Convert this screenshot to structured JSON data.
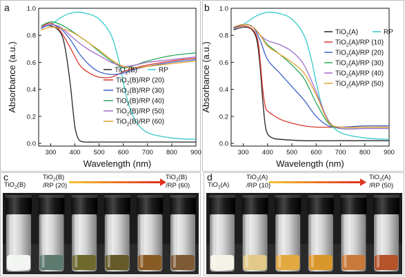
{
  "chart_data": [
    {
      "panel": "a",
      "type": "line",
      "xlabel": "Wavelength (nm)",
      "ylabel": "Absorbance (a.u.)",
      "xlim": [
        250,
        900
      ],
      "ylim": [
        -0.02,
        1.0
      ],
      "xticks": [
        300,
        400,
        500,
        600,
        700,
        800,
        900
      ],
      "yticks": [
        0.0,
        0.2,
        0.4,
        0.6,
        0.8,
        1.0
      ],
      "legend_position": "bottom-right",
      "series": [
        {
          "name": "TiO2(B)",
          "color": "#222222",
          "x": [
            260,
            300,
            340,
            360,
            380,
            390,
            400,
            410,
            420,
            440,
            480,
            550,
            700,
            900
          ],
          "y": [
            0.86,
            0.87,
            0.82,
            0.7,
            0.45,
            0.28,
            0.12,
            0.05,
            0.02,
            0.01,
            0.01,
            0.01,
            0.01,
            0.01
          ]
        },
        {
          "name": "RP",
          "color": "#35c9c9",
          "x": [
            260,
            300,
            350,
            400,
            450,
            500,
            550,
            580,
            600,
            620,
            650,
            700,
            800,
            900
          ],
          "y": [
            0.86,
            0.88,
            0.94,
            0.97,
            0.96,
            0.92,
            0.8,
            0.62,
            0.45,
            0.3,
            0.17,
            0.08,
            0.04,
            0.03
          ]
        },
        {
          "name": "TiO2(B)/RP (20)",
          "color": "#d9362b",
          "x": [
            260,
            300,
            340,
            380,
            420,
            460,
            500,
            550,
            600,
            650,
            700,
            800,
            900
          ],
          "y": [
            0.86,
            0.89,
            0.83,
            0.71,
            0.58,
            0.52,
            0.49,
            0.49,
            0.53,
            0.56,
            0.58,
            0.61,
            0.63
          ]
        },
        {
          "name": "TiO2(B)/RP (30)",
          "color": "#3a5fc8",
          "x": [
            260,
            300,
            340,
            380,
            420,
            460,
            500,
            550,
            600,
            650,
            700,
            800,
            900
          ],
          "y": [
            0.85,
            0.88,
            0.85,
            0.77,
            0.66,
            0.58,
            0.53,
            0.51,
            0.52,
            0.55,
            0.57,
            0.6,
            0.62
          ]
        },
        {
          "name": "TiO2(B)/RP (40)",
          "color": "#28a85a",
          "x": [
            260,
            300,
            340,
            380,
            420,
            460,
            500,
            550,
            600,
            650,
            700,
            800,
            900
          ],
          "y": [
            0.87,
            0.9,
            0.88,
            0.84,
            0.79,
            0.74,
            0.68,
            0.61,
            0.56,
            0.58,
            0.61,
            0.65,
            0.67
          ]
        },
        {
          "name": "TiO2(B)/RP (50)",
          "color": "#a06cc8",
          "x": [
            260,
            300,
            340,
            380,
            420,
            460,
            500,
            550,
            600,
            650,
            700,
            800,
            900
          ],
          "y": [
            0.86,
            0.88,
            0.86,
            0.8,
            0.74,
            0.69,
            0.65,
            0.6,
            0.57,
            0.58,
            0.6,
            0.62,
            0.64
          ]
        },
        {
          "name": "TiO2(B)/RP (60)",
          "color": "#e0a02a",
          "x": [
            260,
            300,
            340,
            380,
            420,
            460,
            500,
            550,
            600,
            650,
            700,
            800,
            900
          ],
          "y": [
            0.84,
            0.86,
            0.85,
            0.83,
            0.79,
            0.74,
            0.69,
            0.62,
            0.57,
            0.56,
            0.57,
            0.59,
            0.61
          ]
        }
      ]
    },
    {
      "panel": "b",
      "type": "line",
      "xlabel": "Wavelength (nm)",
      "ylabel": "Absorbance (a.u.)",
      "xlim": [
        250,
        900
      ],
      "ylim": [
        -0.02,
        1.0
      ],
      "xticks": [
        300,
        400,
        500,
        600,
        700,
        800,
        900
      ],
      "yticks": [
        0.0,
        0.2,
        0.4,
        0.6,
        0.8,
        1.0
      ],
      "legend_position": "top-right",
      "series": [
        {
          "name": "TiO2(A)",
          "color": "#222222",
          "x": [
            260,
            300,
            330,
            350,
            360,
            370,
            380,
            390,
            400,
            420,
            450,
            550,
            700,
            900
          ],
          "y": [
            0.84,
            0.86,
            0.85,
            0.8,
            0.72,
            0.55,
            0.32,
            0.14,
            0.07,
            0.04,
            0.03,
            0.02,
            0.02,
            0.02
          ]
        },
        {
          "name": "RP",
          "color": "#35c9c9",
          "x": [
            260,
            300,
            350,
            400,
            450,
            500,
            550,
            580,
            600,
            620,
            650,
            700,
            800,
            900
          ],
          "y": [
            0.86,
            0.88,
            0.94,
            0.97,
            0.96,
            0.92,
            0.8,
            0.62,
            0.45,
            0.3,
            0.17,
            0.08,
            0.04,
            0.03
          ]
        },
        {
          "name": "TiO2(A)/RP (10)",
          "color": "#d9362b",
          "x": [
            260,
            300,
            340,
            360,
            370,
            380,
            390,
            400,
            450,
            500,
            550,
            600,
            700,
            800,
            900
          ],
          "y": [
            0.85,
            0.87,
            0.84,
            0.76,
            0.6,
            0.4,
            0.28,
            0.24,
            0.18,
            0.15,
            0.13,
            0.12,
            0.12,
            0.12,
            0.12
          ]
        },
        {
          "name": "TiO2(A)/RP (20)",
          "color": "#3a5fc8",
          "x": [
            260,
            300,
            340,
            370,
            400,
            450,
            500,
            550,
            600,
            650,
            700,
            800,
            900
          ],
          "y": [
            0.85,
            0.88,
            0.86,
            0.76,
            0.62,
            0.52,
            0.42,
            0.32,
            0.2,
            0.13,
            0.12,
            0.13,
            0.13
          ]
        },
        {
          "name": "TiO2(A)/RP (30)",
          "color": "#28a85a",
          "x": [
            260,
            300,
            340,
            370,
            400,
            450,
            500,
            550,
            600,
            650,
            700,
            800,
            900
          ],
          "y": [
            0.86,
            0.88,
            0.86,
            0.8,
            0.73,
            0.66,
            0.58,
            0.48,
            0.3,
            0.15,
            0.11,
            0.11,
            0.11
          ]
        },
        {
          "name": "TiO2(A)/RP (40)",
          "color": "#a06cc8",
          "x": [
            260,
            300,
            340,
            370,
            400,
            450,
            500,
            550,
            600,
            650,
            700,
            800,
            900
          ],
          "y": [
            0.86,
            0.88,
            0.86,
            0.8,
            0.76,
            0.73,
            0.68,
            0.58,
            0.38,
            0.17,
            0.11,
            0.11,
            0.11
          ]
        },
        {
          "name": "TiO2(A)/RP (50)",
          "color": "#e0a02a",
          "x": [
            260,
            300,
            340,
            370,
            400,
            450,
            500,
            550,
            600,
            650,
            700,
            800,
            900
          ],
          "y": [
            0.86,
            0.88,
            0.86,
            0.8,
            0.72,
            0.66,
            0.6,
            0.52,
            0.36,
            0.16,
            0.12,
            0.12,
            0.12
          ]
        }
      ]
    }
  ],
  "photos": [
    {
      "panel": "c",
      "label_start": "TiO2(B)",
      "label_mid": {
        "line1": "TiO2(B)",
        "line2": "/RP (20)"
      },
      "label_end": {
        "line1": "TiO2(B)",
        "line2": "/RP (60)"
      },
      "powder_colors": [
        "#f2f5f2",
        "#5d7a6e",
        "#6e6a2e",
        "#655a28",
        "#8a5c25",
        "#7e5a35"
      ]
    },
    {
      "panel": "d",
      "label_start": "TiO2(A)",
      "label_mid": {
        "line1": "TiO2(A)",
        "line2": "/RP (10)"
      },
      "label_end": {
        "line1": "TiO2(A)",
        "line2": "/RP (50)"
      },
      "powder_colors": [
        "#f4f1e6",
        "#e2c98a",
        "#e3a840",
        "#d9962b",
        "#c97a3a",
        "#b5532a"
      ]
    }
  ],
  "colors": {
    "arrow_start": "#f5c431",
    "arrow_end": "#e0311e",
    "panel_border": "#bfbfbf"
  }
}
